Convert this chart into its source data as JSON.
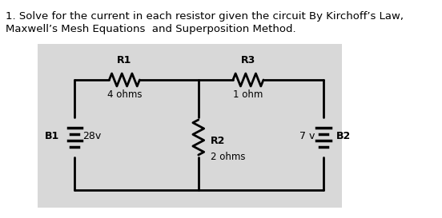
{
  "title_line1": "1. Solve for the current in each resistor given the circuit By Kirchoff’s Law,",
  "title_line2": "Maxwell’s Mesh Equations  and Superposition Method.",
  "bg_color": "#e8e8e8",
  "outer_bg": "#ffffff",
  "R1_label": "R1",
  "R1_value": "4 ohms",
  "R2_label": "R2",
  "R2_value": "2 ohms",
  "R3_label": "R3",
  "R3_value": "1 ohm",
  "B1_label": "B1",
  "B1_value": "28v",
  "B2_label": "B2",
  "B2_value": "7 v",
  "line_color": "#000000",
  "text_color": "#000000"
}
